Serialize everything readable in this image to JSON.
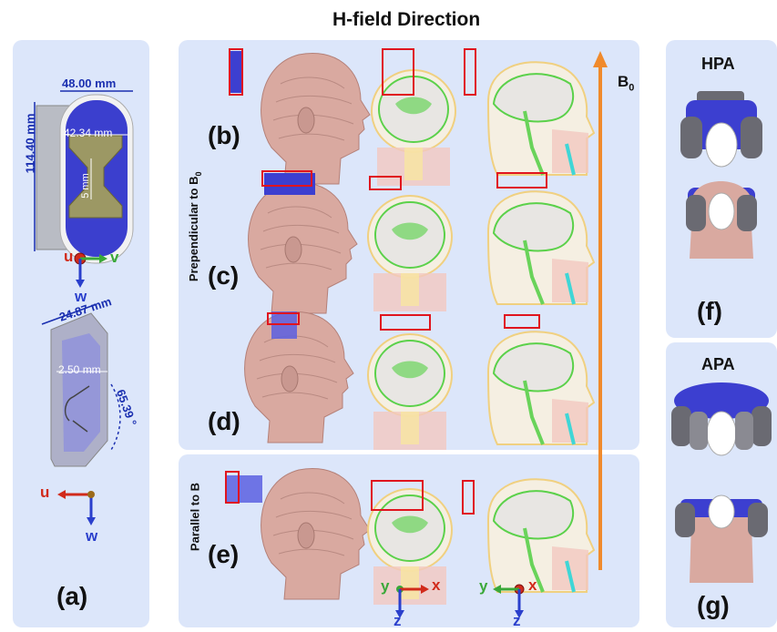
{
  "title": "H-field Direction",
  "panel_a": {
    "label": "(a)",
    "dims": {
      "width": "48.00 mm",
      "height": "114.40 mm",
      "inner": "42.34 mm",
      "gap": "5 mm",
      "length": "24.87 mm",
      "thickness": "2.50 mm",
      "angle": "65.39 °"
    },
    "axes_top": {
      "u": "u",
      "v": "v",
      "w": "w"
    },
    "axes_bottom": {
      "u": "u",
      "w": "w"
    }
  },
  "center": {
    "perp_label": "Prependicular to B",
    "perp_sub": "0",
    "par_label": "Parallel to B",
    "b0": "B",
    "b0_sub": "0",
    "rows": [
      {
        "label": "(b)"
      },
      {
        "label": "(c)"
      },
      {
        "label": "(d)"
      },
      {
        "label": "(e)"
      }
    ],
    "axes_left": {
      "y": "y",
      "x": "x",
      "z": "z"
    },
    "axes_right": {
      "y": "y",
      "x": "x",
      "z": "z"
    }
  },
  "panel_f": {
    "title": "HPA",
    "label": "(f)"
  },
  "panel_g": {
    "title": "APA",
    "label": "(g)"
  },
  "colors": {
    "panel_bg": "#dce6fa",
    "dim_blue": "#1a2fb0",
    "arrow_orange": "#f08a2c",
    "axis_red": "#d12a1a",
    "axis_green": "#3aa839",
    "axis_blue": "#2a3fcc",
    "coil_blue": "#3c3fd0",
    "skin": "#d9a9a0",
    "box_red": "#e0141e"
  }
}
